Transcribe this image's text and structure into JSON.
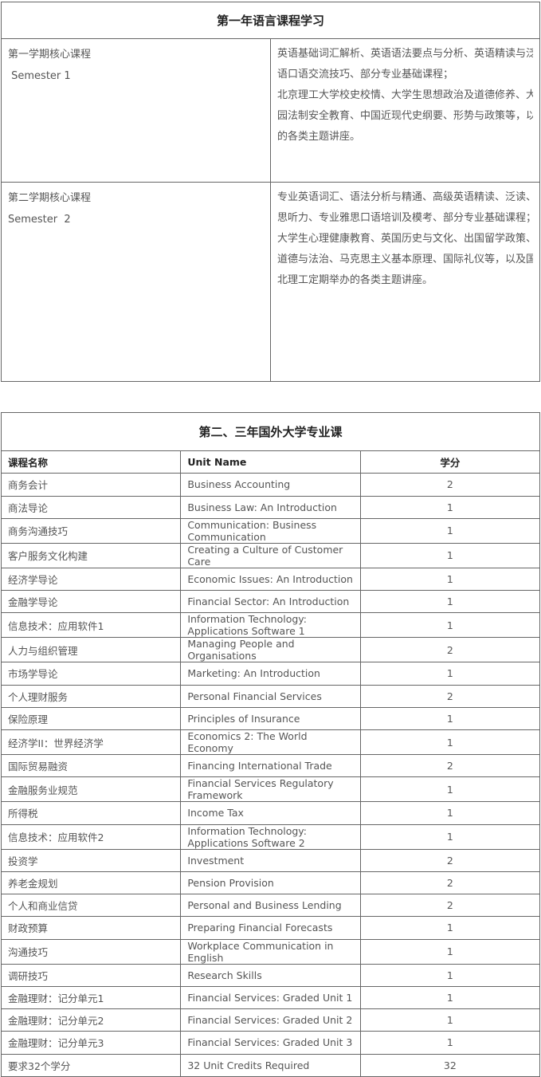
{
  "year1": {
    "title": "第一年语言课程学习",
    "semesters": [
      {
        "name": "第一学期核心课程",
        "name_en": " Semester 1",
        "lines": [
          "英语基础词汇解析、英语语法要点与分析、英语精读与泛读、学术写作、英",
          "语口语交流技巧、部分专业基础课程；",
          "北京理工大学校史校情、大学生思想政治及道德修养、大学生基本礼仪、校",
          "园法制安全教育、中国近现代史纲要、形势与政策等，以及北理工定期举办",
          "的各类主题讲座。"
        ],
        "last": [
          1,
          4
        ]
      },
      {
        "name": "第二学期核心课程",
        "name_en": "Semester  2",
        "lines": [
          "专业英语词汇、语法分析与精通、高级英语精读、泛读、学术写作、专业雅",
          "思听力、专业雅思口语培训及模考、部分专业基础课程；",
          "大学生心理健康教育、英国历史与文化、出国留学政策、专业课导读、思想",
          "道德与法治、马克思主义基本原理、国际礼仪等，以及国外大学游学讲座等",
          "北理工定期举办的各类主题讲座。"
        ],
        "last": [
          1,
          4
        ]
      }
    ]
  },
  "year23": {
    "title": "第二、三年国外大学专业课",
    "headers": [
      "课程名称",
      "Unit Name",
      "学分"
    ],
    "rows": [
      [
        "商务会计",
        "Business Accounting",
        "2"
      ],
      [
        "商法导论",
        "Business Law: An Introduction",
        "1"
      ],
      [
        "商务沟通技巧",
        "Communication: Business Communication",
        "1"
      ],
      [
        "客户服务文化构建",
        "Creating a Culture of Customer Care",
        "1"
      ],
      [
        "经济学导论",
        "Economic Issues: An Introduction",
        "1"
      ],
      [
        "金融学导论",
        "Financial Sector: An Introduction",
        "1"
      ],
      [
        "信息技术：应用软件1",
        "Information Technology: Applications Software 1",
        "1"
      ],
      [
        "人力与组织管理",
        "Managing People and Organisations",
        "2"
      ],
      [
        "市场学导论",
        "Marketing: An Introduction",
        "1"
      ],
      [
        "个人理财服务",
        "Personal Financial Services",
        "2"
      ],
      [
        "保险原理",
        "Principles of Insurance",
        "1"
      ],
      [
        "经济学II：世界经济学",
        "Economics 2: The World Economy",
        "1"
      ],
      [
        "国际贸易融资",
        "Financing International Trade",
        "2"
      ],
      [
        "金融服务业规范",
        "Financial Services Regulatory Framework",
        "1"
      ],
      [
        "所得税",
        "Income Tax",
        "1"
      ],
      [
        "信息技术：应用软件2",
        "Information Technology: Applications Software 2",
        "1"
      ],
      [
        "投资学",
        "Investment",
        "2"
      ],
      [
        "养老金规划",
        "Pension Provision",
        "2"
      ],
      [
        "个人和商业信贷",
        "Personal and Business Lending",
        "2"
      ],
      [
        "财政预算",
        "Preparing Financial Forecasts",
        "1"
      ],
      [
        "沟通技巧",
        "Workplace Communication in English",
        "1"
      ],
      [
        "调研技巧",
        "Research Skills",
        "1"
      ],
      [
        "金融理财：记分单元1",
        "Financial Services: Graded Unit 1",
        "1"
      ],
      [
        "金融理财：记分单元2",
        "Financial Services: Graded Unit 2",
        "1"
      ],
      [
        "金融理财：记分单元3",
        "Financial Services: Graded Unit 3",
        "1"
      ],
      [
        "要求32个学分",
        "32 Unit Credits Required",
        "32"
      ]
    ]
  }
}
